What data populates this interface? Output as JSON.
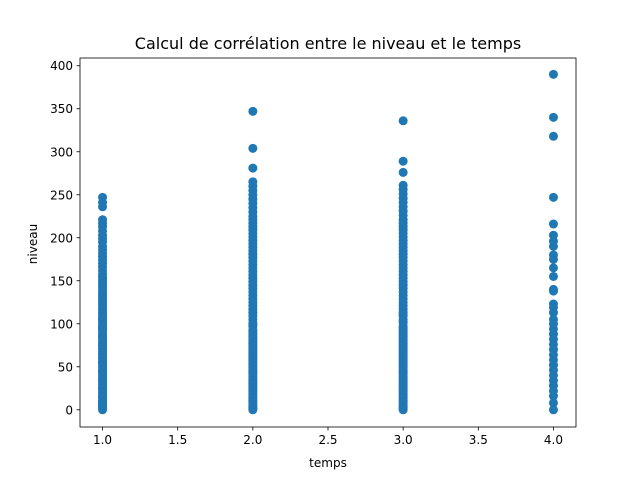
{
  "chart_data": {
    "type": "scatter",
    "title": "Calcul de corrélation entre le niveau et le temps",
    "xlabel": "temps",
    "ylabel": "niveau",
    "xlim": [
      0.85,
      4.15
    ],
    "ylim": [
      -20,
      409
    ],
    "xticks": [
      1.0,
      1.5,
      2.0,
      2.5,
      3.0,
      3.5,
      4.0
    ],
    "xtick_labels": [
      "1.0",
      "1.5",
      "2.0",
      "2.5",
      "3.0",
      "3.5",
      "4.0"
    ],
    "yticks": [
      0,
      50,
      100,
      150,
      200,
      250,
      300,
      350,
      400
    ],
    "ytick_labels": [
      "0",
      "50",
      "100",
      "150",
      "200",
      "250",
      "300",
      "350",
      "400"
    ],
    "grid": false,
    "marker_color": "#1f77b4",
    "series": [
      {
        "x": [
          1,
          1,
          1,
          1,
          1,
          1,
          1,
          1,
          1,
          1,
          1,
          1,
          1,
          1,
          1,
          1,
          1,
          1,
          1,
          1,
          1,
          1,
          1,
          1,
          1,
          1,
          1,
          1,
          1,
          1,
          1,
          1,
          1,
          1,
          1,
          1,
          1,
          1,
          1,
          1,
          1,
          1,
          1,
          1,
          1,
          1,
          1,
          1,
          1,
          1,
          1,
          1,
          1,
          1,
          1,
          1,
          1,
          1,
          1,
          1,
          1,
          1,
          1,
          1,
          1,
          1,
          1,
          1,
          1,
          1,
          1,
          1,
          1,
          1,
          1,
          1,
          1,
          1,
          1,
          1,
          1,
          1,
          1,
          1,
          1,
          2,
          2,
          2,
          2,
          2,
          2,
          2,
          2,
          2,
          2,
          2,
          2,
          2,
          2,
          2,
          2,
          2,
          2,
          2,
          2,
          2,
          2,
          2,
          2,
          2,
          2,
          2,
          2,
          2,
          2,
          2,
          2,
          2,
          2,
          2,
          2,
          2,
          2,
          2,
          2,
          2,
          2,
          2,
          2,
          2,
          2,
          2,
          2,
          2,
          2,
          2,
          2,
          2,
          2,
          2,
          2,
          2,
          2,
          2,
          2,
          2,
          2,
          2,
          2,
          2,
          2,
          2,
          2,
          2,
          2,
          2,
          2,
          2,
          2,
          2,
          2,
          2,
          2,
          2,
          2,
          2,
          2,
          2,
          2,
          2,
          2,
          2,
          2,
          2,
          2,
          2,
          2,
          2,
          3,
          3,
          3,
          3,
          3,
          3,
          3,
          3,
          3,
          3,
          3,
          3,
          3,
          3,
          3,
          3,
          3,
          3,
          3,
          3,
          3,
          3,
          3,
          3,
          3,
          3,
          3,
          3,
          3,
          3,
          3,
          3,
          3,
          3,
          3,
          3,
          3,
          3,
          3,
          3,
          3,
          3,
          3,
          3,
          3,
          3,
          3,
          3,
          3,
          3,
          3,
          3,
          3,
          3,
          3,
          3,
          3,
          3,
          3,
          3,
          3,
          3,
          3,
          3,
          3,
          3,
          3,
          3,
          3,
          3,
          3,
          3,
          3,
          3,
          3,
          3,
          3,
          3,
          3,
          3,
          3,
          3,
          3,
          3,
          3,
          3,
          3,
          3,
          3,
          3,
          3,
          3,
          3,
          3,
          4,
          4,
          4,
          4,
          4,
          4,
          4,
          4,
          4,
          4,
          4,
          4,
          4,
          4,
          4,
          4,
          4,
          4,
          4,
          4,
          4,
          4,
          4,
          4,
          4,
          4,
          4,
          4,
          4,
          4,
          4,
          4,
          4,
          4,
          4
        ],
        "y": [
          247,
          241,
          236,
          221,
          217,
          213,
          208,
          203,
          199,
          195,
          190,
          186,
          182,
          178,
          174,
          170,
          166,
          162,
          158,
          155,
          152,
          149,
          146,
          143,
          140,
          137,
          134,
          131,
          128,
          125,
          122,
          119,
          116,
          113,
          110,
          107,
          104,
          101,
          98,
          95,
          92,
          89,
          86,
          83,
          80,
          77,
          74,
          71,
          68,
          65,
          62,
          59,
          56,
          53,
          50,
          47,
          44,
          41,
          38,
          35,
          32,
          29,
          26,
          23,
          20,
          17,
          14,
          11,
          8,
          6,
          4,
          2,
          0,
          5,
          10,
          15,
          25,
          35,
          45,
          55,
          65,
          75,
          85,
          95,
          105,
          347,
          304,
          281,
          265,
          260,
          255,
          250,
          245,
          240,
          235,
          230,
          225,
          221,
          217,
          213,
          209,
          205,
          201,
          197,
          193,
          189,
          185,
          181,
          177,
          173,
          169,
          165,
          161,
          157,
          153,
          149,
          145,
          141,
          137,
          133,
          129,
          125,
          121,
          117,
          113,
          109,
          105,
          101,
          97,
          93,
          89,
          85,
          81,
          77,
          73,
          69,
          65,
          61,
          57,
          53,
          49,
          45,
          41,
          37,
          33,
          29,
          25,
          21,
          17,
          13,
          9,
          5,
          2,
          0,
          3,
          7,
          11,
          15,
          19,
          23,
          27,
          31,
          35,
          39,
          43,
          47,
          51,
          55,
          59,
          63,
          67,
          71,
          75,
          79,
          83,
          87,
          91,
          99,
          336,
          289,
          276,
          261,
          256,
          251,
          246,
          241,
          236,
          231,
          226,
          221,
          217,
          213,
          209,
          205,
          201,
          197,
          193,
          189,
          185,
          181,
          177,
          173,
          169,
          165,
          161,
          157,
          153,
          149,
          145,
          141,
          137,
          133,
          129,
          125,
          121,
          117,
          113,
          109,
          105,
          101,
          97,
          93,
          89,
          85,
          81,
          77,
          73,
          69,
          65,
          61,
          57,
          53,
          49,
          45,
          41,
          37,
          33,
          29,
          25,
          21,
          17,
          13,
          9,
          5,
          2,
          0,
          3,
          7,
          11,
          15,
          19,
          23,
          27,
          31,
          35,
          39,
          43,
          47,
          51,
          55,
          59,
          63,
          67,
          71,
          75,
          79,
          83,
          87,
          91,
          95,
          103,
          111,
          390,
          340,
          318,
          247,
          216,
          203,
          196,
          190,
          180,
          175,
          165,
          155,
          140,
          138,
          123,
          119,
          113,
          105,
          100,
          94,
          88,
          82,
          76,
          70,
          64,
          58,
          52,
          46,
          40,
          34,
          28,
          22,
          16,
          8,
          0
        ]
      }
    ]
  }
}
